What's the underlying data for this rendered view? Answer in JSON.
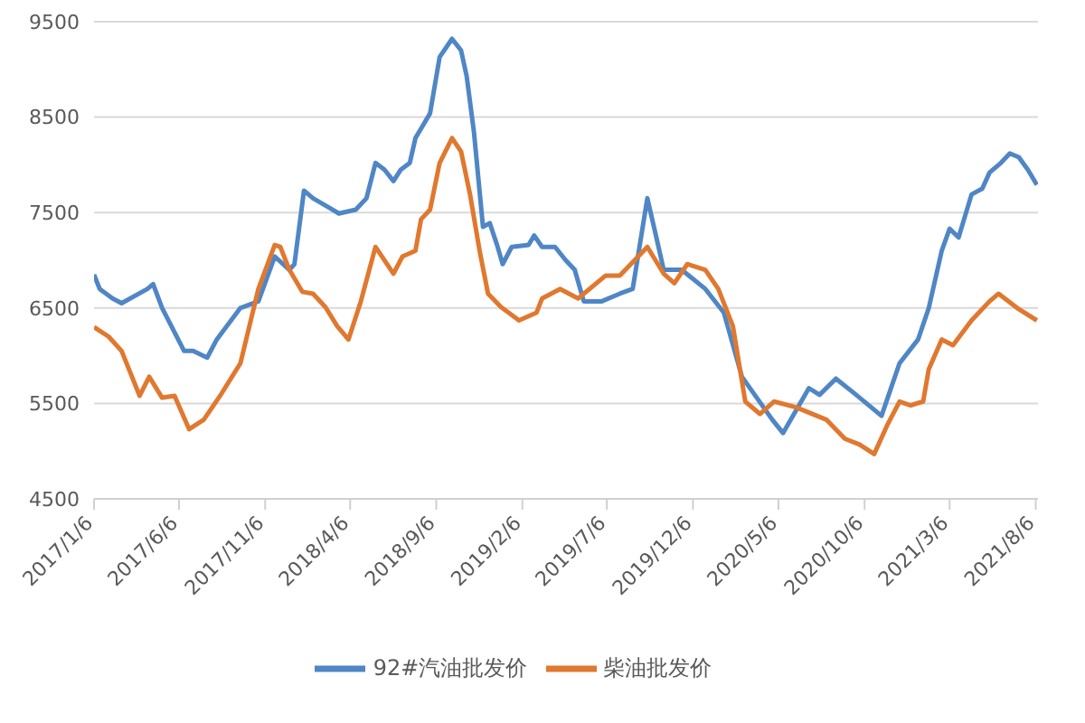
{
  "chart_data": {
    "type": "line",
    "xlim": [
      "2017-01-06",
      "2021-08-10"
    ],
    "ylim": [
      4500,
      9500
    ],
    "yticks": [
      4500,
      5500,
      6500,
      7500,
      8500,
      9500
    ],
    "xticks": [
      {
        "value": "2017-01-06",
        "label": "2017/1/6"
      },
      {
        "value": "2017-06-06",
        "label": "2017/6/6"
      },
      {
        "value": "2017-11-06",
        "label": "2017/11/6"
      },
      {
        "value": "2018-04-06",
        "label": "2018/4/6"
      },
      {
        "value": "2018-09-06",
        "label": "2018/9/6"
      },
      {
        "value": "2019-02-06",
        "label": "2019/2/6"
      },
      {
        "value": "2019-07-06",
        "label": "2019/7/6"
      },
      {
        "value": "2019-12-06",
        "label": "2019/12/6"
      },
      {
        "value": "2020-05-06",
        "label": "2020/5/6"
      },
      {
        "value": "2020-10-06",
        "label": "2020/10/6"
      },
      {
        "value": "2021-03-06",
        "label": "2021/3/6"
      },
      {
        "value": "2021-08-06",
        "label": "2021/8/6"
      }
    ],
    "grid": "y",
    "legend": "bottom",
    "marker": "none",
    "line_style": "solid",
    "series": [
      {
        "name": "92#汽油批发价",
        "color": "#4f86c6",
        "x": [
          "2017-01-06",
          "2017-01-16",
          "2017-02-08",
          "2017-02-24",
          "2017-04-11",
          "2017-04-21",
          "2017-05-07",
          "2017-06-15",
          "2017-07-01",
          "2017-07-26",
          "2017-08-12",
          "2017-09-23",
          "2017-10-25",
          "2017-11-23",
          "2017-12-19",
          "2017-12-28",
          "2018-01-14",
          "2018-01-30",
          "2018-02-28",
          "2018-03-17",
          "2018-04-16",
          "2018-05-05",
          "2018-05-21",
          "2018-06-06",
          "2018-06-22",
          "2018-07-05",
          "2018-07-21",
          "2018-07-31",
          "2018-08-16",
          "2018-08-26",
          "2018-09-12",
          "2018-10-04",
          "2018-10-20",
          "2018-10-30",
          "2018-11-12",
          "2018-11-28",
          "2018-12-10",
          "2018-12-23",
          "2019-01-02",
          "2019-01-18",
          "2019-02-17",
          "2019-02-27",
          "2019-03-13",
          "2019-04-05",
          "2019-04-24",
          "2019-05-10",
          "2019-05-26",
          "2019-06-27",
          "2019-07-29",
          "2019-08-21",
          "2019-09-16",
          "2019-10-02",
          "2019-10-15",
          "2019-11-16",
          "2019-12-28",
          "2020-01-30",
          "2020-03-02",
          "2020-04-25",
          "2020-05-14",
          "2020-06-29",
          "2020-07-18",
          "2020-08-16",
          "2020-09-21",
          "2020-11-05",
          "2020-12-07",
          "2021-01-09",
          "2021-01-28",
          "2021-02-20",
          "2021-03-06",
          "2021-03-22",
          "2021-04-14",
          "2021-05-03",
          "2021-05-16",
          "2021-06-05",
          "2021-06-21",
          "2021-07-07",
          "2021-07-23",
          "2021-08-08"
        ],
        "values": [
          6850,
          6700,
          6600,
          6550,
          6700,
          6750,
          6500,
          6050,
          6050,
          5980,
          6170,
          6500,
          6570,
          7040,
          6900,
          6960,
          7730,
          7650,
          7550,
          7490,
          7530,
          7650,
          8020,
          7950,
          7830,
          7950,
          8020,
          8280,
          8440,
          8540,
          9130,
          9320,
          9200,
          8930,
          8340,
          7350,
          7390,
          7160,
          6960,
          7140,
          7160,
          7260,
          7140,
          7140,
          7000,
          6900,
          6570,
          6570,
          6650,
          6700,
          7650,
          7240,
          6900,
          6900,
          6700,
          6450,
          5780,
          5330,
          5190,
          5660,
          5590,
          5760,
          5590,
          5370,
          5920,
          6170,
          6500,
          7100,
          7330,
          7240,
          7690,
          7750,
          7920,
          8020,
          8120,
          8080,
          7950,
          7790
        ]
      },
      {
        "name": "柴油批发价",
        "color": "#e0782f",
        "x": [
          "2017-01-06",
          "2017-02-01",
          "2017-02-24",
          "2017-03-28",
          "2017-04-14",
          "2017-05-07",
          "2017-05-29",
          "2017-06-24",
          "2017-07-20",
          "2017-08-18",
          "2017-09-23",
          "2017-10-25",
          "2017-11-23",
          "2017-12-03",
          "2017-12-19",
          "2018-01-11",
          "2018-01-30",
          "2018-02-21",
          "2018-03-14",
          "2018-04-03",
          "2018-04-25",
          "2018-05-21",
          "2018-06-22",
          "2018-07-08",
          "2018-07-31",
          "2018-08-10",
          "2018-08-26",
          "2018-09-12",
          "2018-10-04",
          "2018-10-20",
          "2018-11-05",
          "2018-11-22",
          "2018-12-07",
          "2018-12-30",
          "2019-01-31",
          "2019-03-03",
          "2019-03-13",
          "2019-04-14",
          "2019-05-16",
          "2019-07-04",
          "2019-07-29",
          "2019-09-16",
          "2019-10-15",
          "2019-11-03",
          "2019-11-26",
          "2019-12-28",
          "2020-01-20",
          "2020-02-15",
          "2020-03-08",
          "2020-04-03",
          "2020-04-28",
          "2020-06-06",
          "2020-07-30",
          "2020-09-01",
          "2020-09-27",
          "2020-10-23",
          "2020-11-15",
          "2020-12-07",
          "2020-12-27",
          "2021-01-18",
          "2021-01-28",
          "2021-02-20",
          "2021-03-12",
          "2021-04-14",
          "2021-05-16",
          "2021-06-01",
          "2021-07-04",
          "2021-08-08"
        ],
        "values": [
          6300,
          6200,
          6050,
          5580,
          5780,
          5560,
          5580,
          5230,
          5330,
          5580,
          5920,
          6700,
          7160,
          7140,
          6900,
          6670,
          6650,
          6510,
          6310,
          6170,
          6570,
          7140,
          6860,
          7040,
          7100,
          7430,
          7530,
          8020,
          8280,
          8140,
          7690,
          7100,
          6650,
          6510,
          6370,
          6450,
          6600,
          6700,
          6600,
          6840,
          6840,
          7140,
          6860,
          6760,
          6960,
          6900,
          6700,
          6310,
          5520,
          5390,
          5520,
          5460,
          5330,
          5130,
          5070,
          4970,
          5270,
          5520,
          5480,
          5520,
          5860,
          6170,
          6110,
          6370,
          6570,
          6650,
          6500,
          6370
        ]
      }
    ]
  }
}
